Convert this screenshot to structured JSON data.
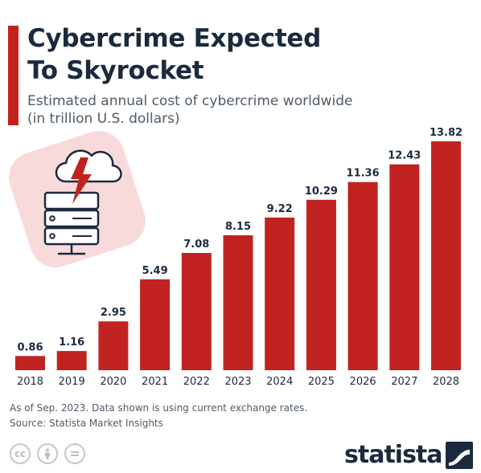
{
  "header": {
    "title_line1": "Cybercrime Expected",
    "title_line2": "To Skyrocket",
    "subtitle_line1": "Estimated annual cost of cybercrime worldwide",
    "subtitle_line2": "(in trillion U.S. dollars)"
  },
  "chart_data": {
    "type": "bar",
    "title": "Cybercrime Expected To Skyrocket",
    "subtitle": "Estimated annual cost of cybercrime worldwide (in trillion U.S. dollars)",
    "categories": [
      "2018",
      "2019",
      "2020",
      "2021",
      "2022",
      "2023",
      "2024",
      "2025",
      "2026",
      "2027",
      "2028"
    ],
    "values": [
      0.86,
      1.16,
      2.95,
      5.49,
      7.08,
      8.15,
      9.22,
      10.29,
      11.36,
      12.43,
      13.82
    ],
    "value_labels": [
      "0.86",
      "1.16",
      "2.95",
      "5.49",
      "7.08",
      "8.15",
      "9.22",
      "10.29",
      "11.36",
      "12.43",
      "13.82"
    ],
    "ylim": [
      0,
      13.82
    ],
    "grid": false,
    "legend": "none",
    "bar_color": "#c0231f"
  },
  "footer": {
    "note": "As of Sep. 2023. Data shown is using current exchange rates.",
    "source": "Source: Statista Market Insights",
    "license_icons": [
      "cc-icon",
      "by-person-icon",
      "nd-equals-icon"
    ],
    "logo_text": "statista"
  },
  "colors": {
    "accent": "#c0231f",
    "title": "#1b2a3d",
    "text": "#4f5b66",
    "illustration_bg": "#f9dadb"
  }
}
